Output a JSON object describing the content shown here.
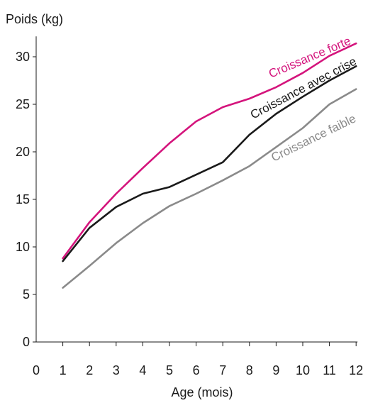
{
  "chart_data": {
    "type": "line",
    "title": "",
    "xlabel": "Age (mois)",
    "ylabel": "Poids (kg)",
    "xlim": [
      0,
      12
    ],
    "ylim": [
      0,
      32
    ],
    "x_ticks": [
      0,
      1,
      2,
      3,
      4,
      5,
      6,
      7,
      8,
      9,
      10,
      11,
      12
    ],
    "y_ticks": [
      0,
      5,
      10,
      15,
      20,
      25,
      30
    ],
    "grid": false,
    "legend": "inline labels along lines",
    "x": [
      1,
      2,
      3,
      4,
      5,
      6,
      7,
      8,
      9,
      10,
      11,
      12
    ],
    "series": [
      {
        "name": "Croissance forte",
        "color": "#d4147c",
        "values": [
          8.8,
          12.6,
          15.6,
          18.3,
          20.9,
          23.2,
          24.7,
          25.6,
          26.8,
          28.3,
          30.1,
          31.4
        ]
      },
      {
        "name": "Croissance avec crise",
        "color": "#1a1a1a",
        "values": [
          8.5,
          12.0,
          14.2,
          15.6,
          16.3,
          17.6,
          18.9,
          21.8,
          24.0,
          25.8,
          27.5,
          29.0
        ]
      },
      {
        "name": "Croissance faible",
        "color": "#8a8a8a",
        "values": [
          5.7,
          8.0,
          10.4,
          12.5,
          14.3,
          15.6,
          17.0,
          18.5,
          20.5,
          22.5,
          25.0,
          26.6
        ]
      }
    ]
  }
}
